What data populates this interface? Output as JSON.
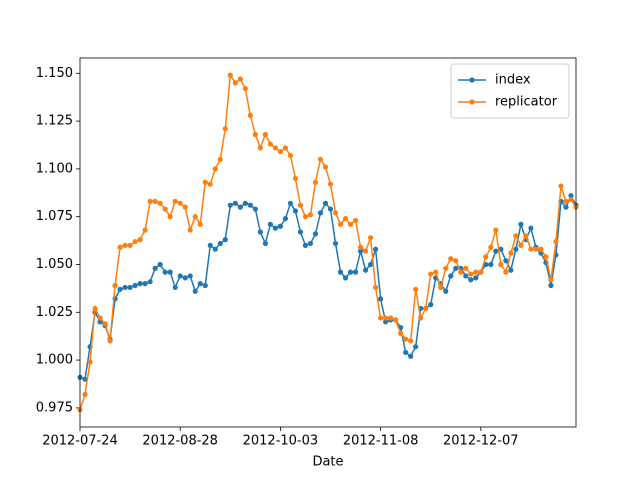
{
  "chart_data": {
    "type": "line",
    "x_label": "Date",
    "categories": [
      "2012-07-24",
      null,
      null,
      null,
      null,
      null,
      null,
      null,
      null,
      null,
      null,
      null,
      null,
      null,
      null,
      null,
      null,
      null,
      null,
      null,
      "2012-08-28",
      null,
      null,
      null,
      null,
      null,
      null,
      null,
      null,
      null,
      null,
      null,
      null,
      null,
      null,
      null,
      null,
      null,
      null,
      null,
      "2012-10-03",
      null,
      null,
      null,
      null,
      null,
      null,
      null,
      null,
      null,
      null,
      null,
      null,
      null,
      null,
      null,
      null,
      null,
      null,
      null,
      "2012-11-08",
      null,
      null,
      null,
      null,
      null,
      null,
      null,
      null,
      null,
      null,
      null,
      null,
      null,
      null,
      null,
      null,
      null,
      null,
      null,
      "2012-12-07",
      null,
      null,
      null,
      null,
      null,
      null,
      null,
      null,
      null,
      null,
      null,
      null,
      null,
      null,
      null,
      null,
      null,
      null,
      null
    ],
    "series": [
      {
        "name": "index",
        "color": "#1f77b4",
        "values": [
          0.991,
          0.99,
          1.007,
          1.025,
          1.02,
          1.018,
          1.011,
          1.032,
          1.037,
          1.038,
          1.038,
          1.039,
          1.04,
          1.04,
          1.041,
          1.048,
          1.05,
          1.046,
          1.046,
          1.038,
          1.044,
          1.043,
          1.044,
          1.036,
          1.04,
          1.039,
          1.06,
          1.058,
          1.061,
          1.063,
          1.081,
          1.082,
          1.08,
          1.082,
          1.081,
          1.079,
          1.067,
          1.061,
          1.071,
          1.069,
          1.07,
          1.074,
          1.082,
          1.078,
          1.067,
          1.06,
          1.061,
          1.066,
          1.077,
          1.082,
          1.079,
          1.061,
          1.046,
          1.043,
          1.046,
          1.046,
          1.057,
          1.047,
          1.05,
          1.058,
          1.032,
          1.02,
          1.021,
          1.021,
          1.017,
          1.004,
          1.002,
          1.007,
          1.027,
          1.027,
          1.029,
          1.043,
          1.04,
          1.036,
          1.044,
          1.048,
          1.048,
          1.044,
          1.042,
          1.043,
          1.046,
          1.05,
          1.05,
          1.057,
          1.058,
          1.052,
          1.047,
          1.058,
          1.071,
          1.063,
          1.069,
          1.059,
          1.056,
          1.051,
          1.039,
          1.055,
          1.083,
          1.08,
          1.086,
          1.081
        ]
      },
      {
        "name": "replicator",
        "color": "#ff7f0e",
        "values": [
          0.974,
          0.982,
          0.999,
          1.027,
          1.022,
          1.019,
          1.01,
          1.039,
          1.059,
          1.06,
          1.06,
          1.062,
          1.063,
          1.068,
          1.083,
          1.083,
          1.082,
          1.079,
          1.075,
          1.083,
          1.082,
          1.08,
          1.068,
          1.075,
          1.071,
          1.093,
          1.092,
          1.1,
          1.105,
          1.121,
          1.149,
          1.145,
          1.147,
          1.142,
          1.128,
          1.118,
          1.111,
          1.118,
          1.113,
          1.111,
          1.109,
          1.111,
          1.107,
          1.095,
          1.081,
          1.075,
          1.076,
          1.093,
          1.105,
          1.101,
          1.092,
          1.077,
          1.071,
          1.074,
          1.071,
          1.073,
          1.059,
          1.057,
          1.064,
          1.038,
          1.022,
          1.022,
          1.022,
          1.021,
          1.014,
          1.011,
          1.01,
          1.037,
          1.022,
          1.027,
          1.045,
          1.046,
          1.038,
          1.048,
          1.053,
          1.052,
          1.046,
          1.048,
          1.045,
          1.046,
          1.046,
          1.054,
          1.059,
          1.068,
          1.05,
          1.046,
          1.056,
          1.065,
          1.06,
          1.065,
          1.058,
          1.058,
          1.058,
          1.054,
          1.042,
          1.062,
          1.091,
          1.083,
          1.084,
          1.08
        ]
      }
    ],
    "ylim": [
      0.965,
      1.158
    ],
    "yticks": [
      0.975,
      {
        "value": 1.0,
        "label": "1.000"
      },
      1.025,
      {
        "value": 1.05,
        "label": "1.050"
      },
      1.075,
      {
        "value": 1.1,
        "label": "1.100"
      },
      1.125,
      {
        "value": 1.15,
        "label": "1.150"
      }
    ],
    "grid": false,
    "markers": true,
    "legend": "upper right"
  }
}
